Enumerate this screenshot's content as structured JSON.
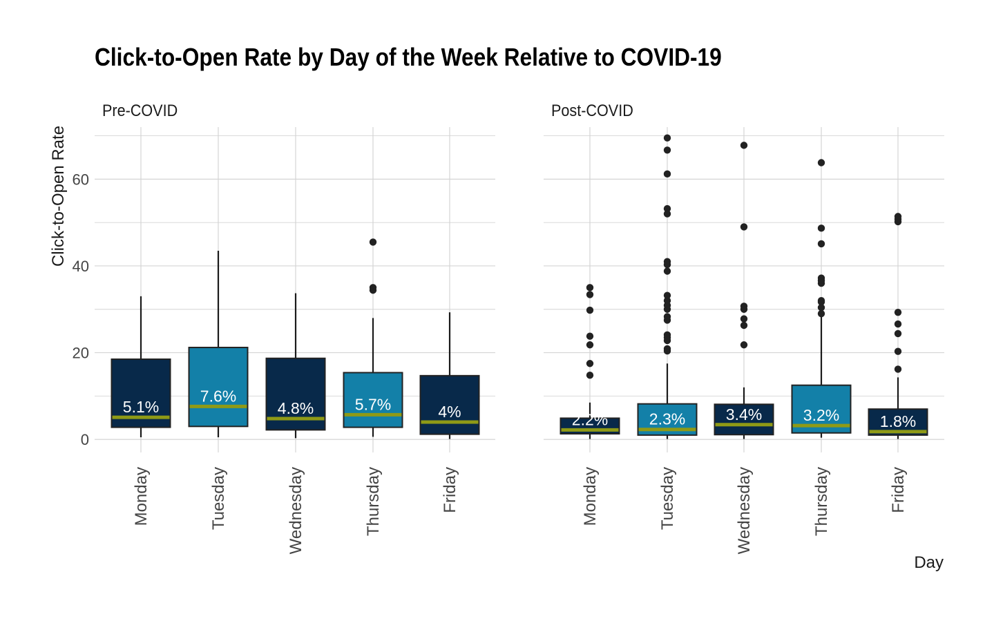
{
  "chart_data": {
    "type": "box",
    "title": "Click-to-Open Rate by Day of the Week Relative to COVID-19",
    "ylabel": "Click-to-Open Rate",
    "xlabel": "Day",
    "ylim": [
      -3,
      72
    ],
    "yticks": [
      0,
      20,
      40,
      60
    ],
    "grid": true,
    "colors": {
      "box_dark": "#08294a",
      "box_light": "#1380a8",
      "median_line": "#8f9a16",
      "box_border": "#222222",
      "whisker": "#1a1a1a",
      "outlier": "#222222",
      "grid": "#d4d4d4",
      "label_text": "#ffffff"
    },
    "categories": [
      "Monday",
      "Tuesday",
      "Wednesday",
      "Thursday",
      "Friday"
    ],
    "panels": [
      {
        "name": "Pre-COVID",
        "boxes": [
          {
            "category": "Monday",
            "fill": "dark",
            "min": 0.5,
            "q1": 2.8,
            "median": 5.1,
            "q3": 18.5,
            "max": 33.0,
            "label": "5.1%",
            "outliers": []
          },
          {
            "category": "Tuesday",
            "fill": "light",
            "min": 0.5,
            "q1": 3.0,
            "median": 7.6,
            "q3": 21.2,
            "max": 43.5,
            "label": "7.6%",
            "outliers": []
          },
          {
            "category": "Wednesday",
            "fill": "dark",
            "min": 0.3,
            "q1": 2.2,
            "median": 4.8,
            "q3": 18.7,
            "max": 33.7,
            "label": "4.8%",
            "outliers": []
          },
          {
            "category": "Thursday",
            "fill": "light",
            "min": 0.6,
            "q1": 2.8,
            "median": 5.7,
            "q3": 15.4,
            "max": 28.0,
            "label": "5.7%",
            "outliers": [
              34.4,
              35.0,
              45.5
            ]
          },
          {
            "category": "Friday",
            "fill": "dark",
            "min": 0.1,
            "q1": 1.2,
            "median": 4.0,
            "q3": 14.7,
            "max": 29.3,
            "label": "4%",
            "outliers": []
          }
        ]
      },
      {
        "name": "Post-COVID",
        "boxes": [
          {
            "category": "Monday",
            "fill": "dark",
            "min": 0.1,
            "q1": 1.3,
            "median": 2.2,
            "q3": 4.9,
            "max": 8.5,
            "label": "2.2%",
            "outliers": [
              14.8,
              17.5,
              21.8,
              23.8,
              29.8,
              33.4,
              35.0
            ]
          },
          {
            "category": "Tuesday",
            "fill": "light",
            "min": 0.1,
            "q1": 1.0,
            "median": 2.3,
            "q3": 8.2,
            "max": 17.5,
            "label": "2.3%",
            "outliers": [
              20.4,
              20.9,
              22.8,
              23.5,
              24.1,
              27.5,
              28.3,
              30.0,
              30.9,
              32.0,
              33.2,
              38.8,
              40.3,
              41.0,
              52.0,
              53.2,
              61.2,
              66.7,
              69.5
            ]
          },
          {
            "category": "Wednesday",
            "fill": "dark",
            "min": 0.1,
            "q1": 1.1,
            "median": 3.4,
            "q3": 8.1,
            "max": 12.0,
            "label": "3.4%",
            "outliers": [
              21.8,
              26.3,
              27.8,
              30.0,
              30.7,
              49.0,
              67.8
            ]
          },
          {
            "category": "Thursday",
            "fill": "light",
            "min": 0.4,
            "q1": 1.5,
            "median": 3.2,
            "q3": 12.5,
            "max": 28.8,
            "label": "3.2%",
            "outliers": [
              29.0,
              30.4,
              31.7,
              32.0,
              36.0,
              36.6,
              37.2,
              45.1,
              48.7,
              63.8
            ]
          },
          {
            "category": "Friday",
            "fill": "dark",
            "min": 0.1,
            "q1": 1.0,
            "median": 1.8,
            "q3": 7.0,
            "max": 14.3,
            "label": "1.8%",
            "outliers": [
              16.2,
              20.3,
              24.4,
              26.6,
              29.3,
              50.2,
              50.8,
              51.4
            ]
          }
        ]
      }
    ]
  }
}
